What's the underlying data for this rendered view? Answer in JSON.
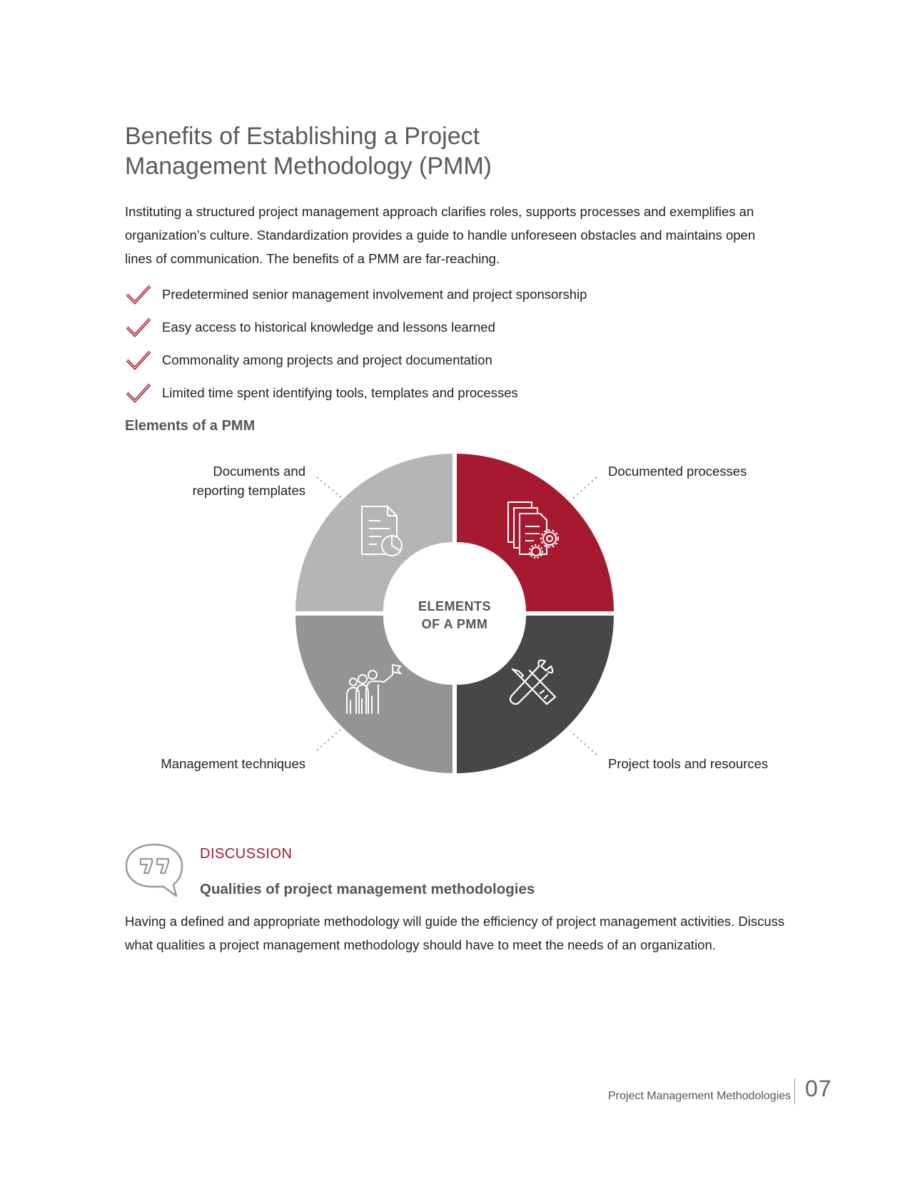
{
  "title": "Benefits of Establishing a Project Management Methodology (PMM)",
  "intro": "Instituting a structured project management approach clarifies roles, supports processes and exemplifies an organization’s culture. Standardization provides a guide to handle unforeseen obstacles and maintains open lines of communication. The benefits of a PMM are far-reaching.",
  "benefits": [
    {
      "icon": "checkmark-icon",
      "text": "Predetermined senior management involvement and project sponsorship"
    },
    {
      "icon": "checkmark-icon",
      "text": "Easy access to historical knowledge and lessons learned"
    },
    {
      "icon": "checkmark-icon",
      "text": "Commonality among projects and project documentation"
    },
    {
      "icon": "checkmark-icon",
      "text": "Limited time spent identifying tools, templates and processes"
    }
  ],
  "elements_heading": "Elements of a PMM",
  "diagram": {
    "center_line1": "ELEMENTS",
    "center_line2": "OF A PMM",
    "segments": [
      {
        "label_line1": "Documents and",
        "label_line2": "reporting templates",
        "color": "#b5b5b5",
        "icon": "document-chart-icon"
      },
      {
        "label": "Documented processes",
        "color": "#a6192e",
        "icon": "documents-gear-icon"
      },
      {
        "label": "Management techniques",
        "color": "#949494",
        "icon": "team-flag-icon"
      },
      {
        "label": "Project tools and resources",
        "color": "#474747",
        "icon": "wrench-screwdriver-icon"
      }
    ]
  },
  "discussion": {
    "label": "DISCUSSION",
    "icon": "quote-bubble-icon",
    "heading": "Qualities of project management methodologies",
    "body": "Having a defined and appropriate methodology will guide the efficiency of project management activities. Discuss what qualities a project management methodology should have to meet the needs of an organization."
  },
  "footer": {
    "title": "Project Management Methodologies",
    "page_number": "07"
  },
  "colors": {
    "accent": "#a6192e",
    "heading_gray": "#5a5a5a"
  }
}
